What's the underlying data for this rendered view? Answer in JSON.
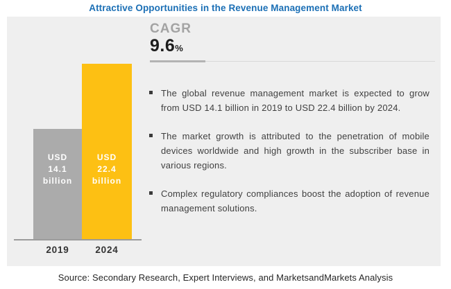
{
  "title": "Attractive Opportunities in the Revenue Management Market",
  "cagr": {
    "label": "CAGR",
    "value": "9.6",
    "unit": "%"
  },
  "bullets": [
    "The global revenue management market is expected to grow from USD 14.1 billion in 2019 to USD 22.4 billion by 2024.",
    "The market growth is attributed to the penetration of mobile devices worldwide and high growth in the subscriber base in various regions.",
    "Complex regulatory compliances boost the adoption of revenue management solutions."
  ],
  "source": "Source: Secondary Research, Expert Interviews, and MarketsandMarkets Analysis",
  "colors": {
    "title_blue": "#1b6fb5",
    "panel_bg": "#efefef",
    "bar_2019": "#ababab",
    "bar_2024": "#fdc013",
    "bullet_text": "#404040"
  },
  "chart_data": {
    "type": "bar",
    "categories": [
      "2019",
      "2024"
    ],
    "values": [
      14.1,
      22.4
    ],
    "value_unit": "USD billion",
    "bar_labels": [
      [
        "USD",
        "14.1",
        "billion"
      ],
      [
        "USD",
        "22.4",
        "billion"
      ]
    ],
    "cagr_percent": 9.6,
    "title": "Attractive Opportunities in the Revenue Management Market",
    "xlabel": "",
    "ylabel": "",
    "ylim": [
      0,
      22.4
    ],
    "grid": false,
    "legend": "none"
  }
}
